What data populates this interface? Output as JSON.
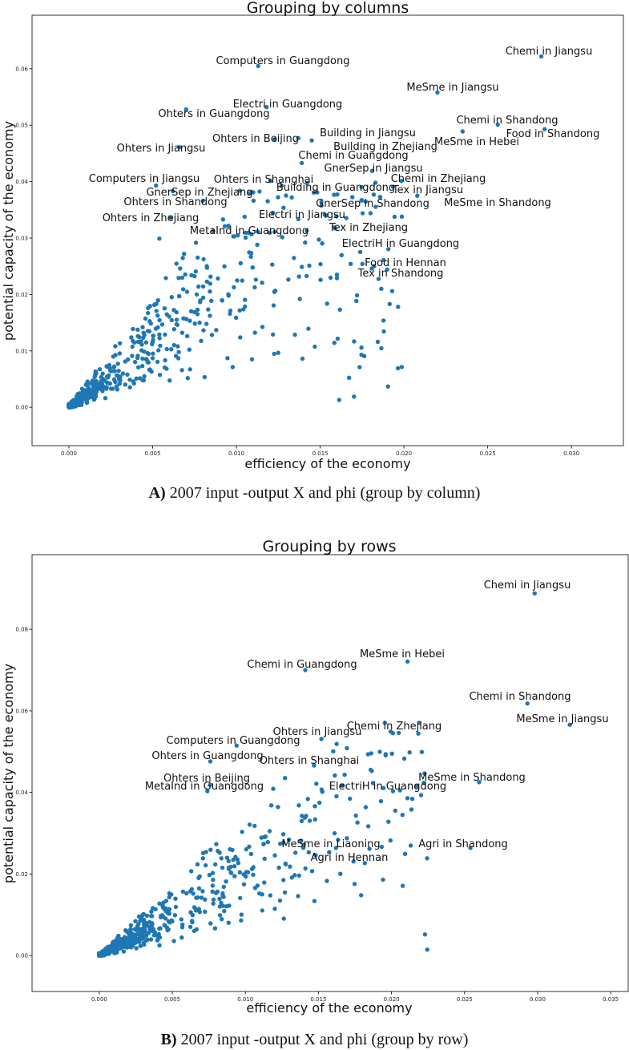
{
  "chart_data": [
    {
      "type": "scatter",
      "title": "Grouping by columns",
      "xlabel": "efficiency of the economy",
      "ylabel": "potential capacity of the economy",
      "xlim": [
        -0.0022,
        0.0331
      ],
      "ylim": [
        -0.0068,
        0.0695
      ],
      "xticks": [
        "0.000",
        "0.005",
        "0.010",
        "0.015",
        "0.020",
        "0.025",
        "0.030"
      ],
      "xtick_values": [
        0,
        0.005,
        0.01,
        0.015,
        0.02,
        0.025,
        0.03
      ],
      "yticks": [
        "0.00",
        "0.01",
        "0.02",
        "0.03",
        "0.04",
        "0.05",
        "0.06"
      ],
      "ytick_values": [
        0,
        0.01,
        0.02,
        0.03,
        0.04,
        0.05,
        0.06
      ],
      "marker_color": "#1f77b4",
      "caption_bold": "A)",
      "caption_rest": " 2007 input -output X and phi (group by column)",
      "annotations": [
        {
          "text": "Chemi in Jiangsu",
          "x": 0.0282,
          "y": 0.0622
        },
        {
          "text": "Computers in Guangdong",
          "x": 0.0113,
          "y": 0.0605
        },
        {
          "text": "MeSme in Jiangsu",
          "x": 0.022,
          "y": 0.0558
        },
        {
          "text": "Electri in Guangdong",
          "x": 0.0118,
          "y": 0.0532
        },
        {
          "text": "Ohters in Guangdong",
          "x": 0.007,
          "y": 0.0528
        },
        {
          "text": "Chemi in Shandong",
          "x": 0.0256,
          "y": 0.0501
        },
        {
          "text": "Food in Shandong",
          "x": 0.0284,
          "y": 0.0493
        },
        {
          "text": "MeSme in Hebei",
          "x": 0.0235,
          "y": 0.0489
        },
        {
          "text": "Building in Jiangsu",
          "x": 0.0137,
          "y": 0.0477
        },
        {
          "text": "Ohters in Beijing",
          "x": 0.0123,
          "y": 0.0475
        },
        {
          "text": "Building in Zhejiang",
          "x": 0.0145,
          "y": 0.0473
        },
        {
          "text": "Ohters in Jiangsu",
          "x": 0.0066,
          "y": 0.0461
        },
        {
          "text": "Chemi in Guangdong",
          "x": 0.0139,
          "y": 0.0433
        },
        {
          "text": "GnerSep in Jiangsu",
          "x": 0.0181,
          "y": 0.0419
        },
        {
          "text": "Chemi in Zhejiang",
          "x": 0.0183,
          "y": 0.0398
        },
        {
          "text": "Computers in Jiangsu",
          "x": 0.0052,
          "y": 0.0393
        },
        {
          "text": "Ohters in Shanghai",
          "x": 0.0102,
          "y": 0.0384
        },
        {
          "text": "GnerSep in Zhejiang",
          "x": 0.0062,
          "y": 0.0383
        },
        {
          "text": "Tex in Jiangsu",
          "x": 0.0182,
          "y": 0.0377
        },
        {
          "text": "Building in Guangdong",
          "x": 0.011,
          "y": 0.0381
        },
        {
          "text": "MeSme in Shandong",
          "x": 0.0208,
          "y": 0.0375
        },
        {
          "text": "Ohters in Shandong",
          "x": 0.008,
          "y": 0.0366
        },
        {
          "text": "GnerSep in Shandong",
          "x": 0.0133,
          "y": 0.0372
        },
        {
          "text": "Ohters in Zhejiang",
          "x": 0.0061,
          "y": 0.0336
        },
        {
          "text": "Electri in Jiangsu",
          "x": 0.0092,
          "y": 0.0333
        },
        {
          "text": "Tex in Zhejiang",
          "x": 0.0142,
          "y": 0.0313
        },
        {
          "text": "MetaInd in Guangdong",
          "x": 0.0054,
          "y": 0.0299
        },
        {
          "text": "ElectriH in Guangdong",
          "x": 0.0141,
          "y": 0.0292
        },
        {
          "text": "Food in Hennan",
          "x": 0.019,
          "y": 0.0244
        },
        {
          "text": "Tex in Shandong",
          "x": 0.016,
          "y": 0.0229
        }
      ]
    },
    {
      "type": "scatter",
      "title": "Grouping by rows",
      "xlabel": "efficiency of the economy",
      "ylabel": "potential capacity of the economy",
      "xlim": [
        -0.0046,
        0.0362
      ],
      "ylim": [
        -0.0088,
        0.0983
      ],
      "xticks": [
        "0.000",
        "0.005",
        "0.010",
        "0.015",
        "0.020",
        "0.025",
        "0.030",
        "0.035"
      ],
      "xtick_values": [
        0,
        0.005,
        0.01,
        0.015,
        0.02,
        0.025,
        0.03,
        0.035
      ],
      "yticks": [
        "0.00",
        "0.02",
        "0.04",
        "0.06",
        "0.08"
      ],
      "ytick_values": [
        0,
        0.02,
        0.04,
        0.06,
        0.08
      ],
      "marker_color": "#1f77b4",
      "caption_bold": "B)",
      "caption_rest": " 2007 input -output X and phi (group by row)",
      "annotations": [
        {
          "text": "Chemi in Jiangsu",
          "x": 0.0298,
          "y": 0.0888
        },
        {
          "text": "MeSme in Hebei",
          "x": 0.0211,
          "y": 0.0721
        },
        {
          "text": "Chemi in Guangdong",
          "x": 0.0141,
          "y": 0.07
        },
        {
          "text": "Chemi in Shandong",
          "x": 0.0293,
          "y": 0.0618
        },
        {
          "text": "MeSme in Jiangsu",
          "x": 0.0322,
          "y": 0.0566
        },
        {
          "text": "Chemi in Zhejiang",
          "x": 0.0205,
          "y": 0.0546
        },
        {
          "text": "Ohters in Jiangsu",
          "x": 0.0152,
          "y": 0.0531
        },
        {
          "text": "Computers in Guangdong",
          "x": 0.0094,
          "y": 0.0515
        },
        {
          "text": "Ohters in Guangdong",
          "x": 0.0076,
          "y": 0.0476
        },
        {
          "text": "Ohters in Shanghai",
          "x": 0.0147,
          "y": 0.0466
        },
        {
          "text": "MeSme in Shandong",
          "x": 0.026,
          "y": 0.0425
        },
        {
          "text": "Ohters in Beijing",
          "x": 0.0076,
          "y": 0.0419
        },
        {
          "text": "MetaInd in Guangdong",
          "x": 0.0074,
          "y": 0.0403
        },
        {
          "text": "ElectriH in Guangdong",
          "x": 0.0201,
          "y": 0.0403
        },
        {
          "text": "MeSme in Liaoning",
          "x": 0.0162,
          "y": 0.0264
        },
        {
          "text": "Agri in Shandong",
          "x": 0.0254,
          "y": 0.0264
        },
        {
          "text": "Agri in Hennan",
          "x": 0.0174,
          "y": 0.0231
        }
      ]
    }
  ]
}
